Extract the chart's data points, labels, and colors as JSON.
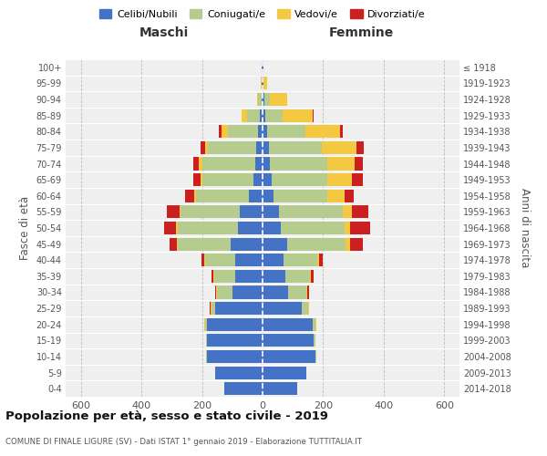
{
  "age_groups": [
    "0-4",
    "5-9",
    "10-14",
    "15-19",
    "20-24",
    "25-29",
    "30-34",
    "35-39",
    "40-44",
    "45-49",
    "50-54",
    "55-59",
    "60-64",
    "65-69",
    "70-74",
    "75-79",
    "80-84",
    "85-89",
    "90-94",
    "95-99",
    "100+"
  ],
  "birth_years": [
    "2014-2018",
    "2009-2013",
    "2004-2008",
    "1999-2003",
    "1994-1998",
    "1989-1993",
    "1984-1988",
    "1979-1983",
    "1974-1978",
    "1969-1973",
    "1964-1968",
    "1959-1963",
    "1954-1958",
    "1949-1953",
    "1944-1948",
    "1939-1943",
    "1934-1938",
    "1929-1933",
    "1924-1928",
    "1919-1923",
    "≤ 1918"
  ],
  "males": {
    "celibi": [
      125,
      155,
      185,
      185,
      185,
      155,
      100,
      90,
      90,
      105,
      80,
      75,
      45,
      30,
      25,
      20,
      15,
      10,
      4,
      2,
      2
    ],
    "coniugati": [
      0,
      0,
      2,
      2,
      5,
      15,
      50,
      70,
      100,
      175,
      200,
      195,
      175,
      170,
      175,
      160,
      100,
      40,
      10,
      2,
      0
    ],
    "vedovi": [
      0,
      0,
      0,
      0,
      2,
      2,
      2,
      2,
      2,
      2,
      5,
      5,
      5,
      5,
      10,
      10,
      20,
      20,
      5,
      2,
      0
    ],
    "divorziati": [
      0,
      0,
      0,
      0,
      0,
      2,
      5,
      8,
      10,
      25,
      40,
      40,
      30,
      25,
      20,
      15,
      10,
      0,
      0,
      0,
      0
    ]
  },
  "females": {
    "nubili": [
      115,
      145,
      175,
      170,
      165,
      130,
      85,
      75,
      70,
      80,
      60,
      55,
      35,
      30,
      25,
      20,
      15,
      10,
      5,
      2,
      2
    ],
    "coniugate": [
      0,
      0,
      2,
      5,
      10,
      20,
      60,
      80,
      110,
      195,
      210,
      210,
      180,
      185,
      190,
      175,
      125,
      55,
      20,
      2,
      0
    ],
    "vedove": [
      0,
      0,
      0,
      0,
      2,
      2,
      3,
      5,
      8,
      15,
      20,
      30,
      55,
      80,
      90,
      115,
      115,
      100,
      55,
      10,
      2
    ],
    "divorziate": [
      0,
      0,
      0,
      0,
      0,
      2,
      5,
      8,
      10,
      40,
      65,
      55,
      30,
      35,
      25,
      25,
      10,
      5,
      0,
      0,
      0
    ]
  },
  "colors": {
    "celibi_nubili": "#4472c4",
    "coniugati": "#b5cc8e",
    "vedovi": "#f5c842",
    "divorziati": "#cc2020"
  },
  "title": "Popolazione per età, sesso e stato civile - 2019",
  "subtitle": "COMUNE DI FINALE LIGURE (SV) - Dati ISTAT 1° gennaio 2019 - Elaborazione TUTTITALIA.IT",
  "xlabel_left": "Maschi",
  "xlabel_right": "Femmine",
  "ylabel_left": "Fasce di età",
  "ylabel_right": "Anni di nascita",
  "xlim": 650,
  "legend_labels": [
    "Celibi/Nubili",
    "Coniugati/e",
    "Vedovi/e",
    "Divorziati/e"
  ],
  "xticks": [
    600,
    400,
    200,
    0,
    200,
    400,
    600
  ]
}
